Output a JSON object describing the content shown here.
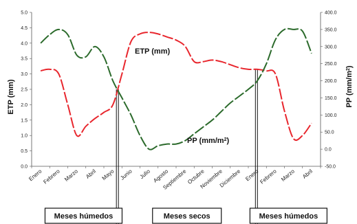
{
  "chart_data": {
    "type": "line",
    "categories": [
      "Enero",
      "Febrero",
      "Marzo",
      "Abril",
      "Mayo",
      "Junio",
      "Julio",
      "Agosto",
      "Septiembre",
      "Octubre",
      "Noviembre",
      "Diciembre",
      "Enero",
      "Febrero",
      "Marzo",
      "Abril"
    ],
    "series": [
      {
        "name": "ETP (mm)",
        "axis": "left",
        "color": "#e8262d",
        "style": "dashed",
        "x": [
          0,
          0.5,
          1,
          1.5,
          2,
          2.5,
          3,
          3.5,
          4,
          4.5,
          5,
          5.5,
          6,
          6.5,
          7,
          7.5,
          8,
          8.5,
          9,
          9.5,
          10,
          10.5,
          11,
          11.5,
          12,
          12.5,
          13,
          13.5,
          14,
          14.5,
          15
        ],
        "values": [
          3.1,
          3.15,
          3.0,
          2.0,
          1.0,
          1.3,
          1.55,
          1.75,
          2.0,
          3.0,
          4.05,
          4.3,
          4.35,
          4.3,
          4.2,
          4.1,
          3.9,
          3.4,
          3.4,
          3.45,
          3.4,
          3.3,
          3.2,
          3.15,
          3.15,
          3.1,
          3.0,
          1.8,
          0.9,
          1.0,
          1.4
        ]
      },
      {
        "name": "PP (mm/m²)",
        "axis": "right",
        "color": "#2b6a2b",
        "style": "dashed",
        "x": [
          0,
          0.5,
          1,
          1.5,
          2,
          2.5,
          3,
          3.5,
          4,
          4.5,
          5,
          5.5,
          6,
          6.5,
          7,
          7.5,
          8,
          8.5,
          9,
          9.5,
          10,
          10.5,
          11,
          11.5,
          12,
          12.5,
          13,
          13.5,
          14,
          14.5,
          15
        ],
        "values": [
          310,
          335,
          350,
          335,
          275,
          270,
          300,
          270,
          200,
          150,
          100,
          40,
          0,
          10,
          15,
          15,
          25,
          45,
          65,
          85,
          110,
          135,
          155,
          175,
          200,
          250,
          320,
          350,
          350,
          345,
          280
        ]
      }
    ],
    "left_axis": {
      "label": "ETP (mm)",
      "min": 0,
      "max": 5,
      "step": 0.5,
      "tick_labels": [
        "0.0",
        "0.5",
        "1.0",
        "1.5",
        "2.0",
        "2.5",
        "3.0",
        "3.5",
        "4.0",
        "4.5",
        "5.0"
      ]
    },
    "right_axis": {
      "label": "PP (mm/m²)",
      "min": -50,
      "max": 400,
      "step": 50,
      "tick_labels": [
        "-50.0",
        "0.0",
        "50.0",
        "100.0",
        "150.0",
        "200.0",
        "250.0",
        "300.0",
        "350.0",
        "400.0"
      ]
    },
    "series_labels": {
      "etp": "ETP (mm)",
      "pp_prefix": "PP (mm/m",
      "pp_sup": "2",
      "pp_suffix": ")"
    },
    "seasons": [
      {
        "label": "Meses húmedos"
      },
      {
        "label": "Meses secos"
      },
      {
        "label": "Meses húmedos"
      }
    ],
    "crossings": [
      4.25,
      11.95
    ],
    "grid": false,
    "colors": {
      "etp": "#e8262d",
      "pp": "#2b6a2b",
      "axis": "#555555"
    }
  }
}
